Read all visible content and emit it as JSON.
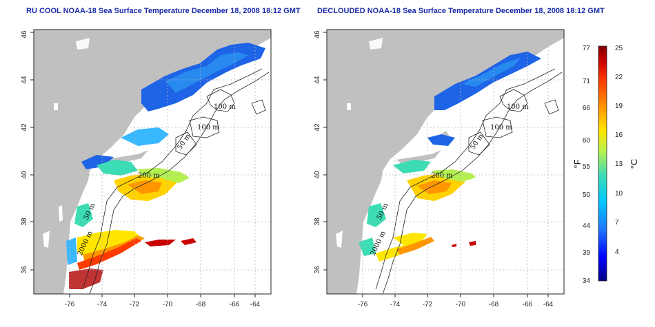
{
  "panels": [
    {
      "title": "RU COOL NOAA-18 Sea Surface Temperature December 18, 2008 18:12 GMT",
      "x_ticks": [
        "-76",
        "-74",
        "-72",
        "-70",
        "-68",
        "-66",
        "-64"
      ],
      "y_ticks": [
        "36",
        "38",
        "40",
        "42",
        "44",
        "46"
      ],
      "contour_labels": [
        "100 m",
        "100 m",
        "50 m",
        "200 m",
        "50 m",
        "2000 m"
      ]
    },
    {
      "title": "DECLOUDED NOAA-18 Sea Surface Temperature December 18, 2008 18:12 GMT",
      "x_ticks": [
        "-76",
        "-74",
        "-72",
        "-70",
        "-68",
        "-66",
        "-64"
      ],
      "y_ticks": [
        "36",
        "38",
        "40",
        "42",
        "44",
        "46"
      ],
      "contour_labels": [
        "100 m",
        "100 m",
        "50 m",
        "200 m",
        "50 m",
        "2000 m"
      ]
    }
  ],
  "colorbar": {
    "fahrenheit_ticks": [
      "77",
      "71",
      "66",
      "60",
      "55",
      "50",
      "44",
      "39",
      "34"
    ],
    "celsius_ticks": [
      "25",
      "22",
      "19",
      "16",
      "13",
      "10",
      "7",
      "4"
    ],
    "fahrenheit_unit": "°F",
    "celsius_unit": "°C",
    "colors": [
      "#000080",
      "#0000ff",
      "#1e78ff",
      "#00c8ff",
      "#3cdcb4",
      "#b4f050",
      "#ffe600",
      "#ff9600",
      "#ff3c00",
      "#c80000",
      "#820000"
    ]
  },
  "map_colors": {
    "land": "#c0c0c0",
    "ocean": "#ffffff",
    "grid": "#b4b4b4",
    "title": "#1a2aa8"
  }
}
